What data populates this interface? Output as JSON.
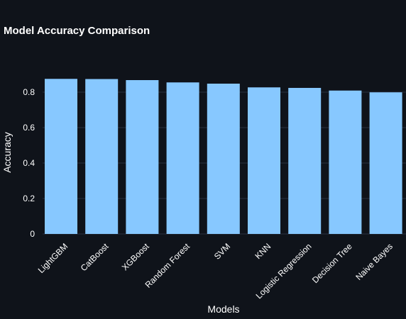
{
  "chart_data": {
    "type": "bar",
    "title": "Model Accuracy Comparison",
    "xlabel": "Models",
    "ylabel": "Accuracy",
    "categories": [
      "LightGBM",
      "CatBoost",
      "XGBoost",
      "Random Forest",
      "SVM",
      "KNN",
      "Logistic Regression",
      "Decision Tree",
      "Naive Bayes"
    ],
    "values": [
      0.875,
      0.874,
      0.868,
      0.855,
      0.848,
      0.827,
      0.824,
      0.809,
      0.799
    ],
    "yticks": [
      "0",
      "0.2",
      "0.4",
      "0.6",
      "0.8"
    ],
    "ylim": [
      0,
      1
    ],
    "grid": true,
    "legend": "none",
    "colors": {
      "bar": "#87c8ff",
      "background": "#0f131a",
      "grid": "#283140",
      "text": "#ffffff"
    }
  }
}
